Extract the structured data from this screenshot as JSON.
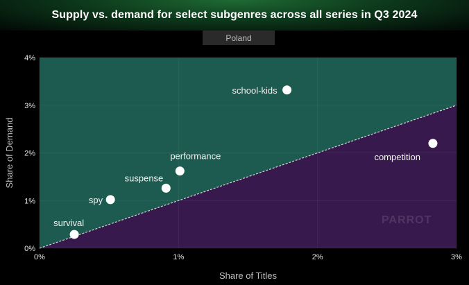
{
  "header": {
    "title": "Supply vs. demand for select subgenres across all series in Q3 2024"
  },
  "region_label": "Poland",
  "watermark": "PARROT",
  "colors": {
    "above_diagonal": "#1d5a50",
    "below_diagonal": "#38194e",
    "diagonal": "#d8d8d8",
    "point": "#ffffff",
    "title_bg": "#1f6b34"
  },
  "chart_data": {
    "type": "scatter",
    "xlabel": "Share of Titles",
    "ylabel": "Share of Demand",
    "xlim": [
      0,
      3
    ],
    "ylim": [
      0,
      4
    ],
    "x_ticks": [
      "0%",
      "1%",
      "2%",
      "3%"
    ],
    "y_ticks": [
      "0%",
      "1%",
      "2%",
      "3%",
      "4%"
    ],
    "reference_line": "y = x",
    "grid": true,
    "points": [
      {
        "label": "school-kids",
        "x": 1.78,
        "y": 3.32
      },
      {
        "label": "competition",
        "x": 2.83,
        "y": 2.2
      },
      {
        "label": "performance",
        "x": 1.01,
        "y": 1.62
      },
      {
        "label": "suspense",
        "x": 0.91,
        "y": 1.26
      },
      {
        "label": "spy",
        "x": 0.51,
        "y": 1.02
      },
      {
        "label": "survival",
        "x": 0.25,
        "y": 0.29
      }
    ]
  }
}
